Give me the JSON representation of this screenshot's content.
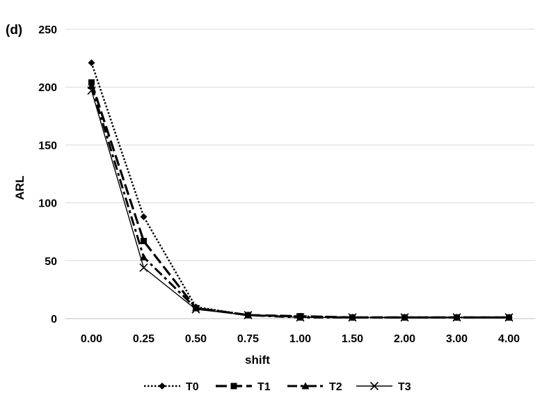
{
  "chart_data": {
    "type": "line",
    "panel_label": "(d)",
    "xlabel": "shift",
    "ylabel": "ARL",
    "categories": [
      "0.00",
      "0.25",
      "0.50",
      "0.75",
      "1.00",
      "1.50",
      "2.00",
      "3.00",
      "4.00"
    ],
    "ylim": [
      0,
      250
    ],
    "yticks": [
      "0",
      "50",
      "100",
      "150",
      "200",
      "250"
    ],
    "grid": true,
    "legend_position": "bottom",
    "series": [
      {
        "name": "T0",
        "marker": "diamond",
        "dash": "dotted",
        "values": [
          221,
          88,
          10,
          3,
          2,
          1,
          1,
          1,
          1
        ]
      },
      {
        "name": "T1",
        "marker": "square",
        "dash": "long-dash",
        "values": [
          204,
          67,
          9,
          3,
          2,
          1,
          1,
          1,
          1
        ]
      },
      {
        "name": "T2",
        "marker": "triangle",
        "dash": "dash-dot",
        "values": [
          201,
          53,
          9,
          3,
          1,
          1,
          1,
          1,
          1
        ]
      },
      {
        "name": "T3",
        "marker": "x",
        "dash": "solid",
        "values": [
          197,
          44,
          8,
          3,
          1,
          1,
          1,
          1,
          1
        ]
      }
    ]
  }
}
